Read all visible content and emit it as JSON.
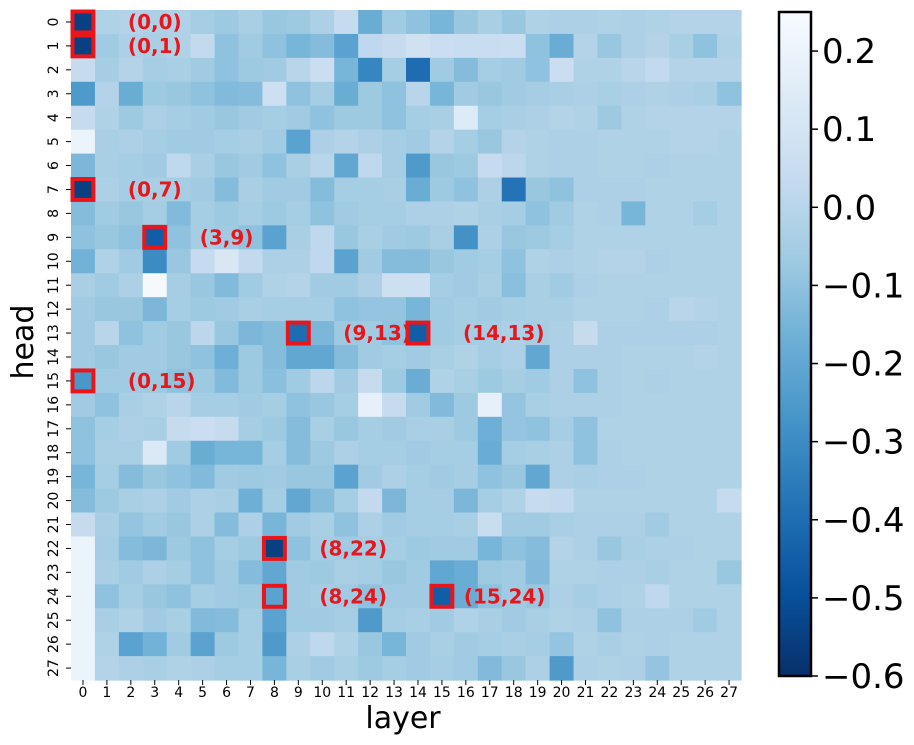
{
  "chart_data": {
    "type": "heatmap",
    "title": "",
    "xlabel": "layer",
    "ylabel": "head",
    "x_ticks": [
      "0",
      "1",
      "2",
      "3",
      "4",
      "5",
      "6",
      "7",
      "8",
      "9",
      "10",
      "11",
      "12",
      "13",
      "14",
      "15",
      "16",
      "17",
      "18",
      "19",
      "20",
      "21",
      "22",
      "23",
      "24",
      "25",
      "26",
      "27"
    ],
    "y_ticks": [
      "0",
      "1",
      "2",
      "3",
      "4",
      "5",
      "6",
      "7",
      "8",
      "9",
      "10",
      "11",
      "12",
      "13",
      "14",
      "15",
      "16",
      "17",
      "18",
      "19",
      "20",
      "21",
      "22",
      "23",
      "24",
      "25",
      "26",
      "27"
    ],
    "colormap": "Blues_r",
    "vmin": -0.6,
    "vmax": 0.25,
    "colorbar_ticks": [
      0.2,
      0.1,
      0.0,
      -0.1,
      -0.2,
      -0.3,
      -0.4,
      -0.5,
      -0.6
    ],
    "colorbar_labels": [
      "0.2",
      "0.1",
      "0.0",
      "−0.1",
      "−0.2",
      "−0.3",
      "−0.4",
      "−0.5",
      "−0.6"
    ],
    "annotations": [
      {
        "layer": 0,
        "head": 0,
        "label": "(0,0)"
      },
      {
        "layer": 0,
        "head": 1,
        "label": "(0,1)"
      },
      {
        "layer": 0,
        "head": 7,
        "label": "(0,7)"
      },
      {
        "layer": 3,
        "head": 9,
        "label": "(3,9)"
      },
      {
        "layer": 9,
        "head": 13,
        "label": "(9,13)"
      },
      {
        "layer": 14,
        "head": 13,
        "label": "(14,13)"
      },
      {
        "layer": 0,
        "head": 15,
        "label": "(0,15)"
      },
      {
        "layer": 8,
        "head": 22,
        "label": "(8,22)"
      },
      {
        "layer": 8,
        "head": 24,
        "label": "(8,24)"
      },
      {
        "layer": 15,
        "head": 24,
        "label": "(15,24)"
      }
    ],
    "values": [
      [
        -0.55,
        -0.02,
        -0.01,
        -0.03,
        -0.02,
        -0.05,
        -0.07,
        -0.04,
        -0.08,
        -0.07,
        -0.03,
        0.04,
        -0.18,
        -0.06,
        -0.1,
        -0.15,
        -0.08,
        -0.04,
        -0.08,
        -0.02,
        -0.03,
        -0.03,
        -0.02,
        -0.03,
        -0.02,
        -0.01,
        -0.01,
        -0.01
      ],
      [
        -0.55,
        -0.06,
        -0.03,
        -0.04,
        -0.02,
        0.03,
        -0.1,
        -0.06,
        -0.1,
        -0.15,
        -0.12,
        -0.22,
        0.02,
        0.04,
        0.08,
        0.06,
        0.05,
        0.05,
        0.06,
        -0.1,
        -0.18,
        -0.01,
        -0.08,
        -0.03,
        -0.01,
        -0.04,
        -0.1,
        -0.02
      ],
      [
        0.04,
        -0.05,
        -0.01,
        -0.05,
        -0.04,
        -0.06,
        -0.1,
        -0.07,
        -0.06,
        0.0,
        0.06,
        -0.15,
        -0.32,
        -0.05,
        -0.4,
        -0.06,
        -0.12,
        -0.05,
        -0.06,
        -0.1,
        0.06,
        -0.02,
        -0.02,
        0.0,
        0.03,
        -0.01,
        -0.01,
        -0.01
      ],
      [
        -0.25,
        -0.01,
        -0.18,
        -0.07,
        -0.08,
        -0.1,
        -0.13,
        -0.12,
        0.07,
        -0.1,
        -0.05,
        -0.18,
        -0.07,
        -0.1,
        0.0,
        -0.15,
        -0.06,
        -0.08,
        -0.06,
        -0.05,
        -0.04,
        -0.03,
        -0.04,
        -0.03,
        -0.02,
        -0.03,
        -0.04,
        -0.1
      ],
      [
        0.04,
        -0.02,
        -0.07,
        -0.03,
        -0.05,
        -0.06,
        -0.08,
        -0.06,
        -0.05,
        -0.06,
        -0.1,
        -0.07,
        -0.07,
        -0.1,
        -0.05,
        -0.04,
        0.14,
        -0.05,
        -0.04,
        -0.03,
        -0.01,
        -0.02,
        -0.07,
        -0.02,
        -0.01,
        -0.01,
        -0.01,
        -0.01
      ],
      [
        0.2,
        -0.04,
        -0.03,
        -0.05,
        -0.06,
        -0.06,
        -0.05,
        -0.04,
        -0.06,
        -0.22,
        -0.03,
        -0.01,
        -0.03,
        -0.05,
        -0.06,
        -0.01,
        -0.05,
        -0.08,
        -0.01,
        -0.02,
        -0.03,
        -0.03,
        -0.02,
        -0.02,
        -0.02,
        -0.01,
        -0.01,
        -0.02
      ],
      [
        -0.14,
        -0.04,
        -0.05,
        -0.06,
        0.02,
        -0.04,
        -0.08,
        -0.06,
        -0.1,
        -0.04,
        0.0,
        -0.2,
        0.02,
        -0.05,
        -0.25,
        -0.08,
        -0.07,
        0.04,
        0.01,
        -0.02,
        -0.03,
        -0.03,
        -0.02,
        -0.02,
        -0.03,
        -0.02,
        -0.02,
        -0.02
      ],
      [
        -0.55,
        -0.03,
        -0.05,
        -0.04,
        -0.05,
        -0.06,
        -0.12,
        -0.04,
        -0.06,
        -0.06,
        -0.12,
        -0.05,
        -0.05,
        -0.04,
        -0.18,
        -0.07,
        -0.1,
        -0.03,
        -0.38,
        -0.08,
        -0.1,
        -0.03,
        -0.03,
        -0.03,
        -0.02,
        -0.02,
        -0.02,
        -0.02
      ],
      [
        -0.12,
        -0.06,
        -0.08,
        -0.05,
        -0.13,
        -0.05,
        -0.07,
        -0.05,
        -0.07,
        -0.05,
        -0.1,
        -0.06,
        -0.05,
        -0.05,
        -0.03,
        -0.03,
        -0.02,
        -0.04,
        -0.05,
        -0.1,
        -0.06,
        -0.02,
        -0.03,
        -0.15,
        -0.02,
        -0.02,
        -0.05,
        -0.02
      ],
      [
        -0.1,
        -0.08,
        -0.1,
        -0.45,
        -0.1,
        -0.05,
        -0.06,
        -0.1,
        -0.22,
        -0.04,
        0.02,
        -0.08,
        -0.04,
        -0.06,
        -0.07,
        -0.04,
        -0.28,
        -0.03,
        -0.08,
        -0.07,
        -0.05,
        -0.02,
        -0.02,
        -0.02,
        -0.02,
        -0.02,
        -0.02,
        -0.02
      ],
      [
        -0.16,
        -0.02,
        -0.06,
        -0.3,
        -0.08,
        0.04,
        0.12,
        0.03,
        -0.03,
        -0.03,
        0.02,
        -0.22,
        -0.06,
        -0.12,
        -0.12,
        -0.08,
        -0.06,
        -0.05,
        -0.1,
        -0.02,
        -0.03,
        -0.02,
        -0.01,
        -0.01,
        -0.03,
        -0.02,
        -0.02,
        -0.02
      ],
      [
        -0.04,
        -0.06,
        -0.03,
        0.24,
        -0.05,
        -0.08,
        -0.13,
        -0.06,
        -0.02,
        -0.01,
        -0.06,
        -0.06,
        -0.03,
        0.07,
        0.07,
        -0.05,
        -0.06,
        -0.04,
        -0.11,
        -0.04,
        -0.06,
        -0.03,
        -0.02,
        -0.02,
        -0.02,
        -0.02,
        -0.02,
        -0.02
      ],
      [
        -0.06,
        -0.08,
        -0.08,
        -0.14,
        -0.05,
        -0.07,
        -0.06,
        -0.04,
        -0.05,
        -0.05,
        -0.05,
        -0.1,
        -0.09,
        -0.09,
        -0.15,
        -0.06,
        -0.05,
        -0.06,
        -0.05,
        -0.04,
        -0.04,
        -0.02,
        -0.02,
        -0.02,
        -0.03,
        0.0,
        -0.01,
        -0.02
      ],
      [
        -0.06,
        0.0,
        -0.1,
        -0.06,
        -0.08,
        0.01,
        -0.08,
        -0.14,
        -0.12,
        -0.4,
        -0.14,
        -0.07,
        -0.06,
        -0.1,
        -0.45,
        -0.06,
        -0.05,
        -0.05,
        -0.03,
        -0.05,
        -0.03,
        0.04,
        -0.03,
        -0.03,
        -0.03,
        -0.03,
        -0.03,
        -0.02
      ],
      [
        -0.06,
        -0.08,
        -0.06,
        -0.06,
        -0.08,
        -0.1,
        -0.17,
        -0.07,
        -0.12,
        -0.2,
        -0.2,
        -0.12,
        -0.06,
        -0.05,
        -0.06,
        -0.04,
        -0.02,
        -0.05,
        -0.03,
        -0.2,
        -0.03,
        -0.03,
        -0.03,
        -0.02,
        -0.02,
        -0.02,
        -0.01,
        -0.02
      ],
      [
        -0.26,
        -0.06,
        -0.06,
        -0.07,
        -0.1,
        -0.07,
        -0.13,
        -0.07,
        -0.11,
        -0.06,
        0.01,
        -0.06,
        0.04,
        -0.07,
        -0.18,
        -0.02,
        -0.04,
        -0.07,
        -0.05,
        -0.06,
        -0.03,
        -0.1,
        -0.03,
        -0.02,
        -0.03,
        -0.02,
        -0.02,
        -0.02
      ],
      [
        -0.06,
        -0.1,
        -0.04,
        -0.02,
        0.0,
        -0.05,
        -0.05,
        -0.06,
        -0.05,
        -0.1,
        -0.08,
        -0.05,
        0.18,
        0.04,
        -0.06,
        -0.13,
        -0.07,
        0.18,
        -0.09,
        -0.04,
        -0.03,
        -0.03,
        -0.03,
        -0.02,
        -0.02,
        -0.02,
        -0.02,
        -0.02
      ],
      [
        -0.1,
        -0.05,
        -0.03,
        -0.04,
        0.04,
        0.06,
        0.04,
        -0.05,
        -0.07,
        -0.12,
        -0.04,
        -0.08,
        -0.05,
        -0.06,
        -0.04,
        -0.04,
        -0.07,
        -0.17,
        -0.09,
        -0.1,
        -0.05,
        -0.1,
        -0.02,
        -0.02,
        -0.02,
        -0.02,
        -0.02,
        -0.02
      ],
      [
        -0.1,
        -0.04,
        -0.04,
        0.13,
        -0.06,
        -0.18,
        -0.15,
        -0.15,
        -0.05,
        -0.12,
        -0.07,
        -0.03,
        -0.05,
        -0.05,
        -0.06,
        -0.05,
        -0.05,
        -0.18,
        -0.05,
        -0.04,
        -0.03,
        -0.1,
        -0.03,
        -0.02,
        -0.02,
        -0.02,
        -0.02,
        -0.02
      ],
      [
        -0.15,
        -0.05,
        -0.12,
        -0.08,
        -0.1,
        -0.13,
        -0.06,
        -0.07,
        -0.06,
        -0.08,
        -0.08,
        -0.22,
        -0.06,
        -0.03,
        -0.05,
        -0.06,
        -0.05,
        -0.1,
        -0.08,
        -0.2,
        -0.03,
        -0.04,
        -0.03,
        -0.03,
        -0.02,
        -0.02,
        -0.02,
        -0.02
      ],
      [
        -0.12,
        -0.07,
        -0.04,
        -0.03,
        -0.06,
        -0.03,
        -0.04,
        -0.17,
        -0.05,
        -0.2,
        -0.12,
        -0.05,
        0.03,
        -0.14,
        -0.05,
        -0.05,
        -0.14,
        -0.05,
        -0.02,
        0.04,
        0.03,
        -0.02,
        -0.02,
        -0.02,
        -0.02,
        -0.02,
        -0.02,
        0.04
      ],
      [
        0.04,
        -0.04,
        -0.09,
        -0.06,
        -0.08,
        -0.03,
        -0.12,
        -0.03,
        -0.15,
        -0.06,
        -0.04,
        -0.1,
        -0.03,
        -0.06,
        -0.05,
        -0.05,
        -0.04,
        0.05,
        -0.06,
        -0.06,
        -0.04,
        -0.03,
        -0.03,
        -0.03,
        -0.06,
        -0.02,
        -0.02,
        -0.02
      ],
      [
        0.2,
        -0.05,
        -0.12,
        -0.14,
        -0.07,
        -0.1,
        -0.05,
        -0.07,
        -0.55,
        -0.1,
        -0.05,
        -0.06,
        -0.05,
        -0.05,
        -0.07,
        -0.06,
        -0.06,
        -0.15,
        -0.1,
        -0.12,
        -0.01,
        -0.03,
        -0.08,
        -0.04,
        -0.03,
        -0.03,
        -0.02,
        -0.02
      ],
      [
        0.2,
        -0.04,
        -0.06,
        -0.03,
        -0.05,
        -0.1,
        -0.06,
        -0.12,
        -0.2,
        -0.06,
        -0.07,
        -0.04,
        -0.05,
        -0.08,
        -0.06,
        -0.2,
        -0.18,
        -0.07,
        -0.06,
        -0.13,
        -0.02,
        -0.02,
        -0.03,
        -0.03,
        -0.04,
        -0.02,
        -0.02,
        -0.08
      ],
      [
        0.2,
        -0.1,
        -0.05,
        -0.08,
        -0.1,
        -0.05,
        -0.06,
        -0.07,
        -0.22,
        -0.06,
        -0.05,
        -0.06,
        -0.1,
        -0.06,
        -0.06,
        -0.45,
        -0.18,
        -0.1,
        -0.06,
        -0.08,
        -0.03,
        -0.05,
        -0.03,
        -0.02,
        0.02,
        -0.02,
        -0.02,
        -0.02
      ],
      [
        0.2,
        -0.04,
        -0.02,
        -0.06,
        -0.04,
        -0.13,
        -0.12,
        -0.05,
        -0.22,
        -0.06,
        -0.06,
        -0.05,
        -0.25,
        -0.05,
        -0.04,
        -0.06,
        -0.02,
        -0.04,
        -0.06,
        -0.04,
        -0.02,
        -0.03,
        -0.1,
        -0.03,
        -0.03,
        -0.03,
        -0.06,
        -0.02
      ],
      [
        0.2,
        -0.02,
        -0.22,
        -0.16,
        -0.06,
        -0.22,
        -0.07,
        -0.05,
        -0.25,
        -0.03,
        0.02,
        -0.02,
        -0.08,
        -0.15,
        -0.06,
        -0.04,
        -0.06,
        -0.05,
        -0.04,
        -0.05,
        -0.09,
        -0.02,
        -0.04,
        -0.02,
        -0.03,
        -0.02,
        -0.02,
        -0.02
      ],
      [
        0.2,
        -0.01,
        -0.03,
        -0.04,
        -0.02,
        -0.03,
        -0.05,
        -0.05,
        -0.15,
        -0.04,
        -0.06,
        -0.04,
        -0.07,
        -0.05,
        -0.06,
        -0.05,
        -0.06,
        -0.13,
        -0.08,
        -0.03,
        -0.25,
        -0.03,
        -0.02,
        -0.03,
        -0.09,
        -0.02,
        -0.02,
        -0.02
      ]
    ]
  }
}
